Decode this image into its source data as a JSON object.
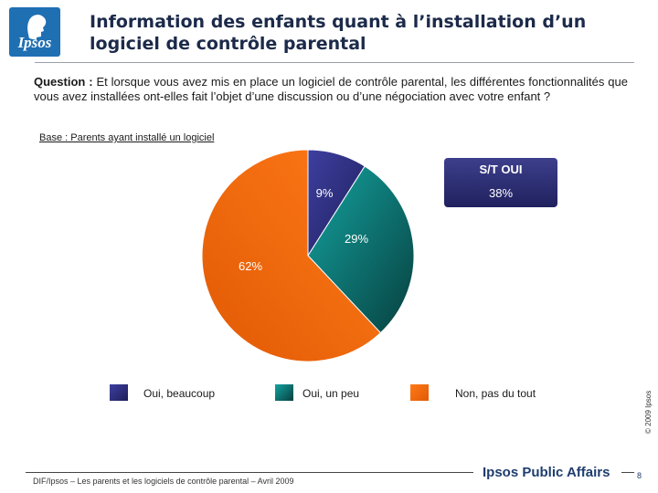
{
  "logo": {
    "text": "Ipsos",
    "icon": "ipsos-head-icon"
  },
  "header": {
    "title": "Information des enfants quant à l’installation d’un logiciel de contrôle parental"
  },
  "question": {
    "label": "Question :",
    "text": "Et lorsque vous avez mis en place un logiciel de contrôle parental, les différentes fonctionnalités que vous avez installées ont-elles fait l’objet d’une discussion ou d’une négociation avec votre enfant ?"
  },
  "base": "Base : Parents ayant installé un logiciel",
  "summary": {
    "label": "S/T OUI",
    "value": "38%"
  },
  "chart_data": {
    "type": "pie",
    "categories": [
      "Oui, beaucoup",
      "Oui, un peu",
      "Non, pas du tout"
    ],
    "values": [
      9,
      29,
      62
    ],
    "labels": [
      "9%",
      "29%",
      "62%"
    ],
    "colors": [
      "#2e2f7a",
      "#0f6b6b",
      "#f26a10"
    ],
    "legend": "bottom"
  },
  "copyright": "© 2009 Ipsos",
  "footer": {
    "source": "DIF/Ipsos – Les parents et les logiciels de contrôle parental – Avril 2009",
    "brand": "Ipsos Public Affairs",
    "page": "8"
  }
}
